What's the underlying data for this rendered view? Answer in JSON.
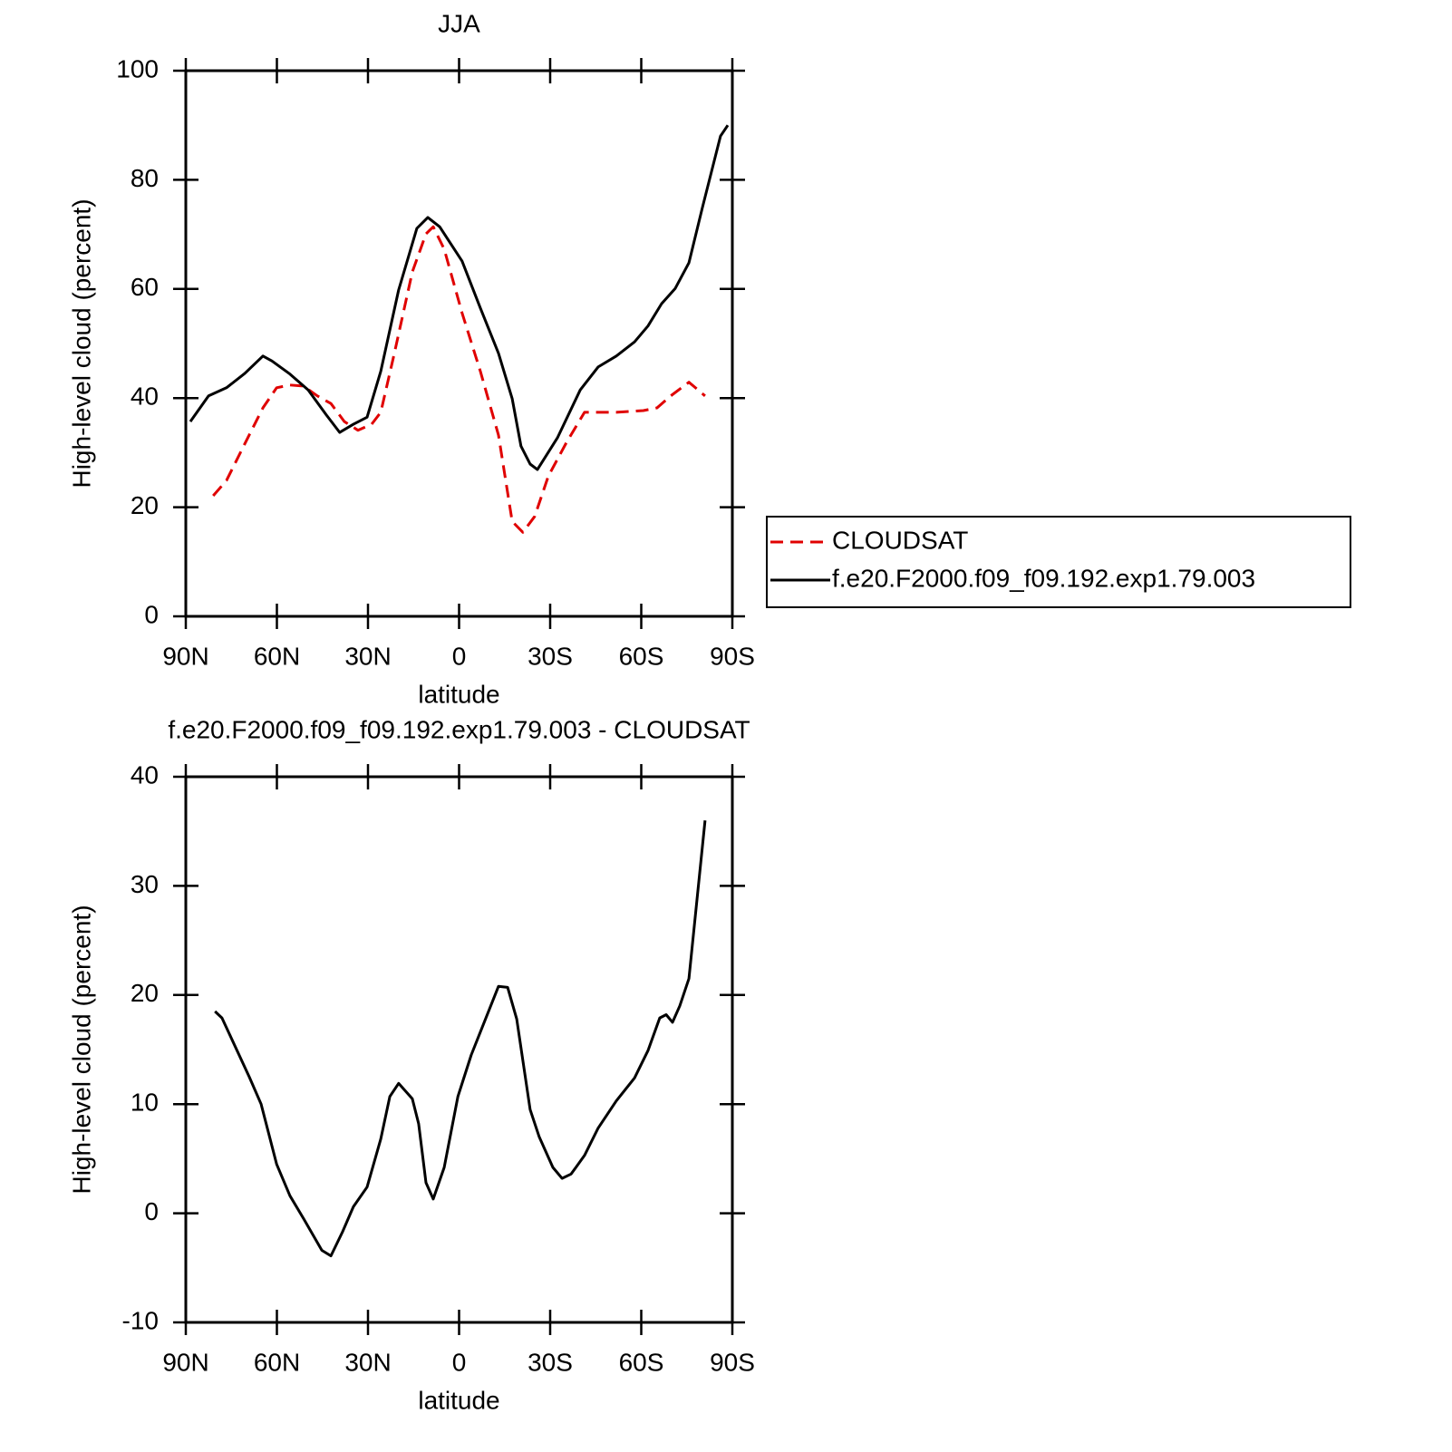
{
  "chart_data": [
    {
      "type": "line",
      "title": "JJA",
      "xlabel": "latitude",
      "ylabel": "High-level cloud (percent)",
      "xlim": [
        90,
        -90
      ],
      "xticks": [
        {
          "value": 90,
          "label": "90N"
        },
        {
          "value": 60,
          "label": "60N"
        },
        {
          "value": 30,
          "label": "30N"
        },
        0,
        {
          "value": -30,
          "label": "30S"
        },
        {
          "value": -60,
          "label": "60S"
        },
        {
          "value": -90,
          "label": "90S"
        }
      ],
      "ylim": [
        0,
        100
      ],
      "yticks": [
        0,
        20,
        40,
        60,
        80,
        100
      ],
      "legend": "right",
      "series": [
        {
          "name": "CLOUDSAT",
          "color": "#e00000",
          "style": "dashed",
          "x": [
            81.0,
            76.6,
            70.6,
            64.6,
            60.1,
            55.7,
            51.2,
            46.7,
            42.2,
            37.8,
            33.3,
            28.8,
            25.8,
            21.3,
            15.4,
            10.9,
            8.5,
            4.9,
            -1.0,
            -7.0,
            -13.0,
            -17.5,
            -21.0,
            -24.9,
            -29.4,
            -35.4,
            -41.3,
            -51.8,
            -60.7,
            -65.2,
            -69.7,
            -75.7,
            -81.0
          ],
          "values": [
            22.1,
            24.9,
            31.6,
            38.2,
            41.9,
            42.4,
            42.2,
            40.4,
            39.0,
            35.7,
            34.1,
            35.2,
            37.4,
            48.2,
            63.1,
            70.1,
            71.4,
            67.3,
            55.6,
            44.9,
            33.2,
            17.4,
            15.4,
            18.3,
            25.7,
            31.9,
            37.4,
            37.4,
            37.7,
            38.2,
            40.4,
            42.9,
            40.4
          ]
        },
        {
          "name": "f.e20.F2000.f09_f09.192.exp1.79.003",
          "color": "#000000",
          "style": "solid",
          "x": [
            88.5,
            82.5,
            76.6,
            70.6,
            64.6,
            61.6,
            55.7,
            49.7,
            43.7,
            39.3,
            34.8,
            30.3,
            25.8,
            19.9,
            13.9,
            10.3,
            6.4,
            -1.0,
            -7.0,
            -13.0,
            -17.5,
            -20.4,
            -23.4,
            -25.8,
            -32.4,
            -39.9,
            -45.8,
            -51.8,
            -57.8,
            -62.2,
            -66.7,
            -71.2,
            -75.7,
            -80.1,
            -86.1,
            -88.5
          ],
          "values": [
            35.7,
            40.4,
            41.9,
            44.5,
            47.7,
            46.8,
            44.4,
            41.5,
            36.9,
            33.7,
            35.2,
            36.5,
            44.9,
            59.8,
            71.1,
            73.1,
            71.4,
            65.1,
            56.5,
            48.2,
            39.9,
            31.2,
            27.9,
            26.9,
            32.7,
            41.5,
            45.7,
            47.7,
            50.3,
            53.2,
            57.3,
            60.1,
            64.8,
            74.8,
            88.0,
            90.0
          ]
        }
      ]
    },
    {
      "type": "line",
      "title": "f.e20.F2000.f09_f09.192.exp1.79.003 - CLOUDSAT",
      "xlabel": "latitude",
      "ylabel": "High-level cloud (percent)",
      "xlim": [
        90,
        -90
      ],
      "xticks": [
        {
          "value": 90,
          "label": "90N"
        },
        {
          "value": 60,
          "label": "60N"
        },
        {
          "value": 30,
          "label": "30N"
        },
        0,
        {
          "value": -30,
          "label": "30S"
        },
        {
          "value": -60,
          "label": "60S"
        },
        {
          "value": -90,
          "label": "90S"
        }
      ],
      "ylim": [
        -10,
        40
      ],
      "yticks": [
        -10,
        0,
        10,
        20,
        30,
        40
      ],
      "series": [
        {
          "color": "#000000",
          "style": "solid",
          "x": [
            80.4,
            78.1,
            69.1,
            65.2,
            60.1,
            55.7,
            51.2,
            45.2,
            42.2,
            38.4,
            34.8,
            30.3,
            25.8,
            22.8,
            19.9,
            15.4,
            13.3,
            10.9,
            8.5,
            4.9,
            0.4,
            -4.0,
            -13.0,
            -16.0,
            -19.0,
            -23.4,
            -26.4,
            -30.9,
            -33.9,
            -36.9,
            -41.3,
            -45.8,
            -51.8,
            -57.8,
            -62.2,
            -66.1,
            -68.2,
            -70.3,
            -72.7,
            -75.7,
            -81.0
          ],
          "values": [
            18.5,
            17.9,
            12.5,
            10.0,
            4.5,
            1.6,
            -0.5,
            -3.4,
            -3.9,
            -1.7,
            0.6,
            2.4,
            6.8,
            10.7,
            11.9,
            10.5,
            8.2,
            2.8,
            1.3,
            4.2,
            10.7,
            14.5,
            20.8,
            20.7,
            17.8,
            9.5,
            7.0,
            4.2,
            3.2,
            3.6,
            5.3,
            7.8,
            10.3,
            12.4,
            14.9,
            17.9,
            18.2,
            17.5,
            19.0,
            21.5,
            36.0
          ]
        }
      ]
    }
  ]
}
